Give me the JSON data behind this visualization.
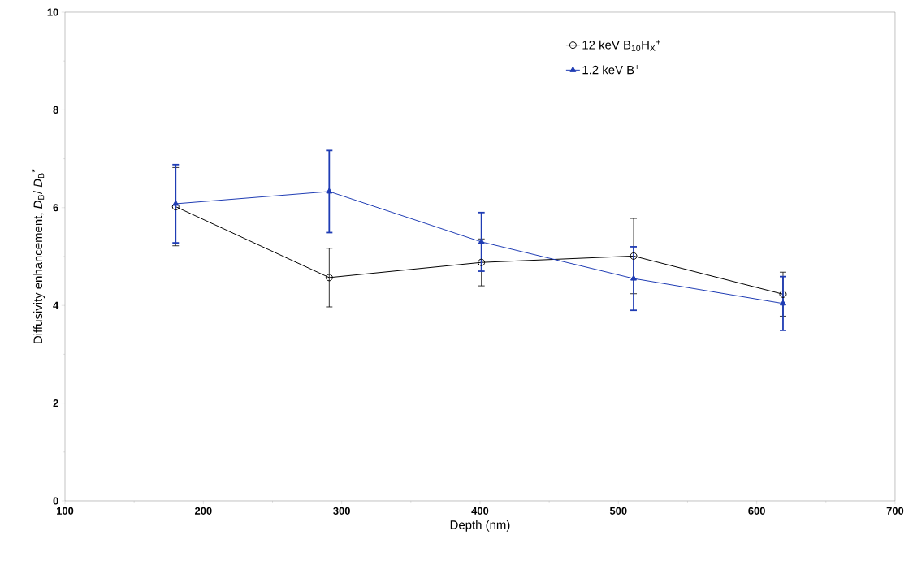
{
  "chart_data": {
    "type": "line",
    "xlabel": "Depth (nm)",
    "ylabel": "Diffusivity enhancement, *D*$_{B}$/ *D*$_{B}$$^{*}$",
    "x": [
      180,
      291,
      401,
      511,
      619
    ],
    "series": [
      {
        "name": "12 keV B$_{10}$H$_{X}$$^{+}$",
        "color": "#000000",
        "marker": "circle",
        "values": [
          6.02,
          4.57,
          4.88,
          5.01,
          4.23
        ],
        "errors": [
          0.8,
          0.6,
          0.48,
          0.77,
          0.45
        ]
      },
      {
        "name": "1.2 keV B$^{+}$",
        "color": "#1f3cb4",
        "marker": "triangle",
        "values": [
          6.08,
          6.33,
          5.3,
          4.55,
          4.04
        ],
        "errors": [
          0.8,
          0.84,
          0.6,
          0.65,
          0.55
        ]
      }
    ],
    "xlim": [
      100,
      700
    ],
    "xticks": [
      100,
      200,
      300,
      400,
      500,
      600,
      700
    ],
    "ylim": [
      0,
      10
    ],
    "yticks": [
      0,
      2,
      4,
      6,
      8,
      10
    ],
    "legend": "top right",
    "grid": false,
    "line_style": "solid"
  }
}
